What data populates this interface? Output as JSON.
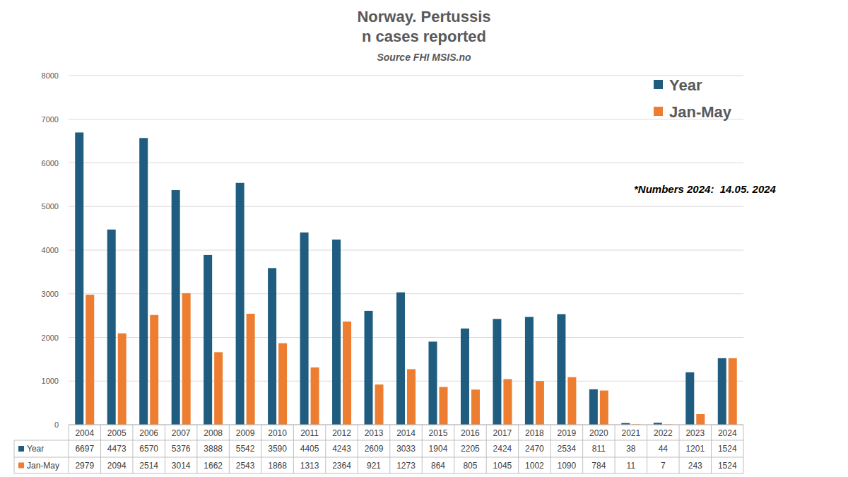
{
  "chart_data": {
    "type": "bar",
    "title": "Norway. Pertussis\nn cases reported",
    "subtitle": "Source FHI MSIS.no",
    "annotation": "*Numbers 2024:  14.05. 2024",
    "categories": [
      "2004",
      "2005",
      "2006",
      "2007",
      "2008",
      "2009",
      "2010",
      "2011",
      "2012",
      "2013",
      "2014",
      "2015",
      "2016",
      "2017",
      "2018",
      "2019",
      "2020",
      "2021",
      "2022",
      "2023",
      "2024"
    ],
    "series": [
      {
        "name": "Year",
        "color": "#1f5c7f",
        "values": [
          6697,
          4473,
          6570,
          5376,
          3888,
          5542,
          3590,
          4405,
          4243,
          2609,
          3033,
          1904,
          2205,
          2424,
          2470,
          2534,
          811,
          38,
          44,
          1201,
          1524
        ]
      },
      {
        "name": "Jan-May",
        "color": "#ed7d31",
        "values": [
          2979,
          2094,
          2514,
          3014,
          1662,
          2543,
          1868,
          1313,
          2364,
          921,
          1273,
          864,
          805,
          1045,
          1002,
          1090,
          784,
          11,
          7,
          243,
          1524
        ]
      }
    ],
    "ylim": [
      0,
      8000
    ],
    "yticks": [
      0,
      1000,
      2000,
      3000,
      4000,
      5000,
      6000,
      7000,
      8000
    ],
    "grid": true,
    "legend": "top-right"
  }
}
